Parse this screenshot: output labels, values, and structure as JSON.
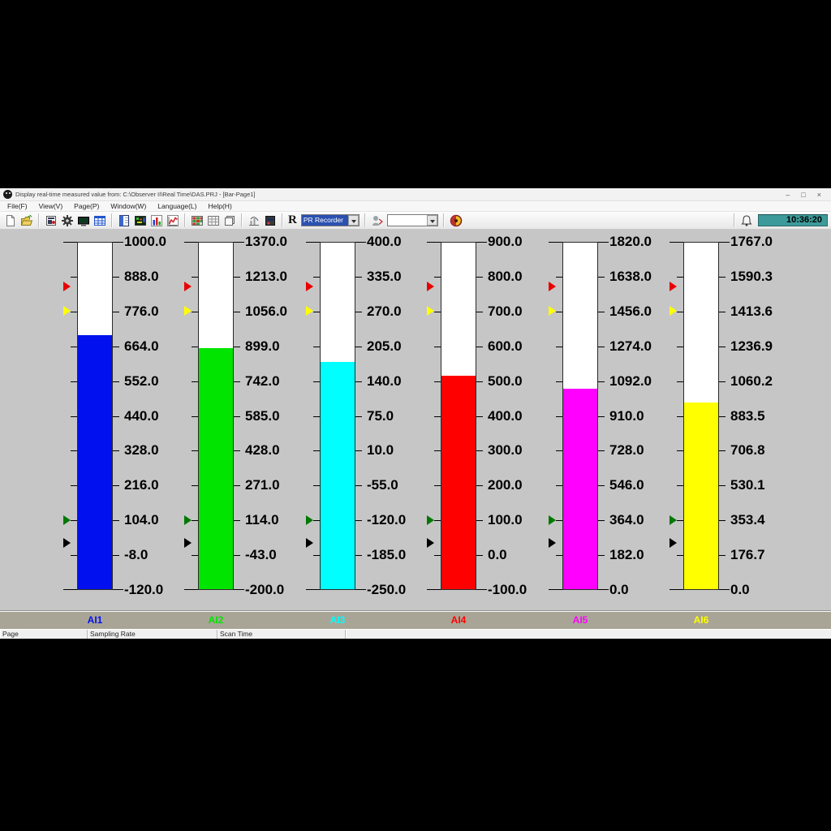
{
  "window": {
    "title": "Display real-time measured value from: C:\\Observer II\\Real Time\\DAS.PRJ - [Bar-Page1]",
    "controls": {
      "minimize": "–",
      "restore": "□",
      "close": "×"
    }
  },
  "menu": {
    "items": [
      {
        "label": "File(F)"
      },
      {
        "label": "View(V)"
      },
      {
        "label": "Page(P)"
      },
      {
        "label": "Window(W)"
      },
      {
        "label": "Language(L)"
      },
      {
        "label": "Help(H)"
      }
    ]
  },
  "toolbar": {
    "r_label": "R",
    "recorder_dropdown_value": "PR Recorder",
    "device_dropdown_value": "",
    "time": "10:36:20",
    "icons": [
      "new-file-icon",
      "open-folder-icon",
      "page-config-icon",
      "gear-icon",
      "monitor-icon",
      "table-icon",
      "panel-display-icon",
      "graphic-display-icon",
      "bar-graph-icon",
      "trend-graph-icon",
      "matrix-view-icon",
      "grid-view-icon",
      "pages-icon",
      "counter-icon",
      "report-icon",
      "connect-icon",
      "brand-logo-icon",
      "alarm-bell-icon"
    ]
  },
  "gauges": {
    "channels": [
      {
        "id": "AI1",
        "color": "#0010ee",
        "ticks": [
          "1000.0",
          "888.0",
          "776.0",
          "664.0",
          "552.0",
          "440.0",
          "328.0",
          "216.0",
          "104.0",
          "-8.0",
          "-120.0"
        ],
        "fill_percent": 73.3
      },
      {
        "id": "AI2",
        "color": "#00e400",
        "ticks": [
          "1370.0",
          "1213.0",
          "1056.0",
          "899.0",
          "742.0",
          "585.0",
          "428.0",
          "271.0",
          "114.0",
          "-43.0",
          "-200.0"
        ],
        "fill_percent": 69.5
      },
      {
        "id": "AI3",
        "color": "#00ffff",
        "ticks": [
          "400.0",
          "335.0",
          "270.0",
          "205.0",
          "140.0",
          "75.0",
          "10.0",
          "-55.0",
          "-120.0",
          "-185.0",
          "-250.0"
        ],
        "fill_percent": 65.5
      },
      {
        "id": "AI4",
        "color": "#ff0000",
        "ticks": [
          "900.0",
          "800.0",
          "700.0",
          "600.0",
          "500.0",
          "400.0",
          "300.0",
          "200.0",
          "100.0",
          "0.0",
          "-100.0"
        ],
        "fill_percent": 61.5
      },
      {
        "id": "AI5",
        "color": "#ff00ff",
        "ticks": [
          "1820.0",
          "1638.0",
          "1456.0",
          "1274.0",
          "1092.0",
          "910.0",
          "728.0",
          "546.0",
          "364.0",
          "182.0",
          "0.0"
        ],
        "fill_percent": 57.8
      },
      {
        "id": "AI6",
        "color": "#ffff00",
        "ticks": [
          "1767.0",
          "1590.3",
          "1413.6",
          "1236.9",
          "1060.2",
          "883.5",
          "706.8",
          "530.1",
          "353.4",
          "176.7",
          "0.0"
        ],
        "fill_percent": 53.8
      }
    ],
    "markers": [
      {
        "name": "high-high-marker",
        "color": "#e80000",
        "position_percent": 12.8
      },
      {
        "name": "high-marker",
        "color": "#ffff00",
        "position_percent": 19.8
      },
      {
        "name": "low-marker",
        "color": "#007800",
        "position_percent": 80.0
      },
      {
        "name": "low-low-marker",
        "color": "#000000",
        "position_percent": 86.4
      }
    ]
  },
  "status_bar": {
    "sections": [
      "Page",
      "Sampling Rate",
      "Scan Time",
      ""
    ]
  },
  "colors": {
    "main_background": "#c6c6c6",
    "band_background": "#a9a596",
    "time_background": "#3d9a9a"
  }
}
